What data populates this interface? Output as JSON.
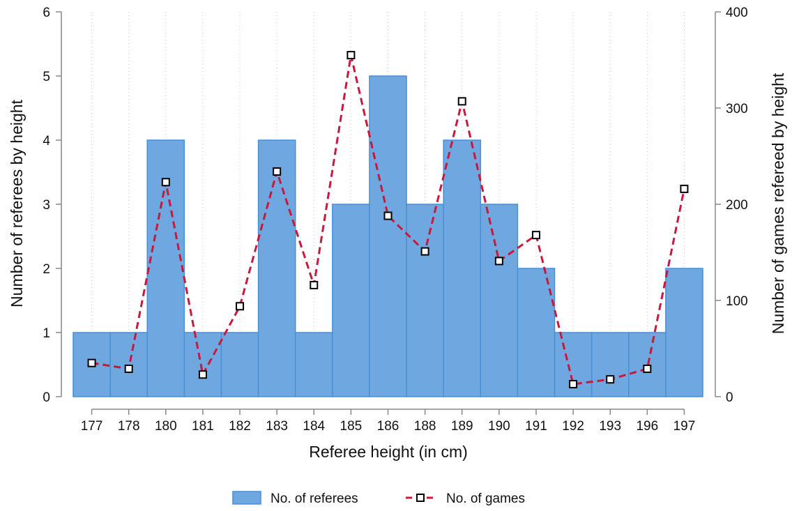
{
  "chart_data": {
    "type": "bar",
    "categories": [
      "177",
      "178",
      "180",
      "181",
      "182",
      "183",
      "184",
      "185",
      "186",
      "188",
      "189",
      "190",
      "191",
      "192",
      "193",
      "196",
      "197"
    ],
    "series": [
      {
        "name": "No. of referees",
        "type": "bar",
        "axis": "left",
        "values": [
          1,
          1,
          4,
          1,
          1,
          4,
          1,
          3,
          5,
          3,
          4,
          3,
          2,
          1,
          1,
          1,
          2
        ]
      },
      {
        "name": "No. of games",
        "type": "line",
        "axis": "right",
        "values": [
          35,
          29,
          223,
          23,
          94,
          234,
          116,
          355,
          188,
          151,
          307,
          141,
          168,
          13,
          18,
          29,
          216
        ]
      }
    ],
    "xlabel": "Referee height (in cm)",
    "ylabel": "Number of referees by height",
    "y2label": "Number of games refereed by height",
    "ylim": [
      0,
      6
    ],
    "y2lim": [
      0,
      400
    ],
    "yticks": [
      "0",
      "1",
      "2",
      "3",
      "4",
      "5",
      "6"
    ],
    "y2ticks": [
      "0",
      "100",
      "200",
      "300",
      "400"
    ],
    "grid": "vertical dotted",
    "legend_position": "bottom-center",
    "colors": {
      "bar_fill": "#6fa8e0",
      "bar_edge": "#4a8fd4",
      "line": "#c8183c",
      "marker_edge": "#000000",
      "grid": "#c8c8c8",
      "axis": "#888888"
    }
  }
}
